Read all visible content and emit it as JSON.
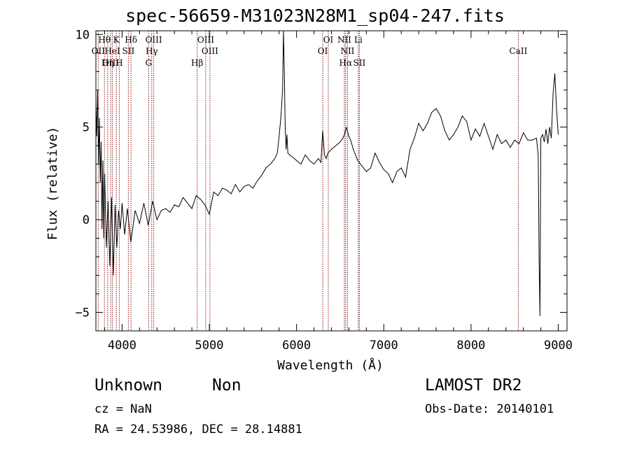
{
  "title": "spec-56659-M31023N28M1_sp04-247.fits",
  "info": {
    "class": "Unknown",
    "subclass": "Non",
    "survey": "LAMOST DR2",
    "cz": "cz = NaN",
    "obs_date": "Obs-Date: 20140101",
    "ra_dec": "RA =  24.53986, DEC =  28.14881"
  },
  "chart_data": {
    "type": "line",
    "title": "spec-56659-M31023N28M1_sp04-247.fits",
    "xlabel": "Wavelength (Å)",
    "ylabel": "Flux (relative)",
    "xlim": [
      3700,
      9100
    ],
    "ylim": [
      -6,
      10.2
    ],
    "x_ticks": [
      4000,
      5000,
      6000,
      7000,
      8000,
      9000
    ],
    "y_ticks": [
      -5,
      0,
      5,
      10
    ],
    "line_color": "#000000",
    "marker_color": "#8b1a1a",
    "grid": false,
    "series": [
      {
        "x": [
          3700,
          3710,
          3720,
          3730,
          3740,
          3750,
          3760,
          3770,
          3780,
          3790,
          3800,
          3820,
          3840,
          3860,
          3880,
          3900,
          3920,
          3940,
          3960,
          3980,
          4000,
          4030,
          4060,
          4100,
          4150,
          4200,
          4250,
          4300,
          4350,
          4400,
          4450,
          4500,
          4550,
          4600,
          4650,
          4700,
          4750,
          4800,
          4850,
          4900,
          4950,
          5000,
          5050,
          5100,
          5150,
          5200,
          5250,
          5300,
          5350,
          5400,
          5450,
          5500,
          5550,
          5600,
          5650,
          5700,
          5750,
          5780,
          5800,
          5820,
          5840,
          5850,
          5860,
          5870,
          5880,
          5890,
          5900,
          5920,
          5950,
          6000,
          6050,
          6100,
          6150,
          6200,
          6250,
          6280,
          6300,
          6320,
          6340,
          6360,
          6380,
          6400,
          6450,
          6500,
          6530,
          6550,
          6570,
          6600,
          6620,
          6650,
          6700,
          6750,
          6800,
          6850,
          6900,
          6950,
          7000,
          7050,
          7100,
          7150,
          7200,
          7250,
          7300,
          7350,
          7400,
          7450,
          7500,
          7550,
          7600,
          7650,
          7700,
          7750,
          7800,
          7850,
          7900,
          7950,
          8000,
          8050,
          8100,
          8150,
          8200,
          8250,
          8300,
          8350,
          8400,
          8450,
          8500,
          8550,
          8600,
          8650,
          8700,
          8750,
          8770,
          8780,
          8790,
          8800,
          8820,
          8840,
          8860,
          8880,
          8900,
          8920,
          8940,
          8960,
          8980,
          9000
        ],
        "y": [
          6.2,
          4.5,
          7.0,
          3.0,
          5.5,
          2.0,
          4.2,
          -0.5,
          3.2,
          -1.0,
          2.5,
          -1.5,
          1.0,
          -2.5,
          1.2,
          -3.0,
          0.8,
          -1.5,
          0.5,
          -0.5,
          0.9,
          -0.8,
          0.6,
          -1.2,
          0.5,
          -0.2,
          0.9,
          -0.3,
          1.0,
          0.0,
          0.5,
          0.6,
          0.4,
          0.8,
          0.7,
          1.2,
          0.9,
          0.6,
          1.3,
          1.1,
          0.8,
          0.3,
          1.5,
          1.3,
          1.7,
          1.6,
          1.4,
          1.9,
          1.5,
          1.8,
          1.9,
          1.7,
          2.1,
          2.4,
          2.8,
          3.0,
          3.3,
          3.6,
          4.5,
          5.5,
          7.0,
          10.2,
          8.0,
          5.0,
          3.8,
          4.6,
          3.6,
          3.5,
          3.4,
          3.2,
          3.0,
          3.5,
          3.2,
          3.0,
          3.3,
          3.1,
          4.8,
          3.5,
          3.3,
          3.6,
          3.7,
          3.8,
          4.0,
          4.2,
          4.4,
          4.6,
          5.0,
          4.5,
          4.3,
          3.8,
          3.2,
          2.9,
          2.6,
          2.8,
          3.6,
          3.1,
          2.7,
          2.5,
          2.0,
          2.6,
          2.8,
          2.3,
          3.8,
          4.4,
          5.2,
          4.8,
          5.2,
          5.8,
          6.0,
          5.6,
          4.8,
          4.3,
          4.6,
          5.0,
          5.6,
          5.3,
          4.3,
          4.9,
          4.5,
          5.2,
          4.5,
          3.8,
          4.6,
          4.1,
          4.3,
          3.9,
          4.3,
          4.1,
          4.7,
          4.3,
          4.3,
          4.4,
          3.5,
          -2.0,
          -5.2,
          4.4,
          4.6,
          4.2,
          4.9,
          4.1,
          5.0,
          4.4,
          6.8,
          7.9,
          6.0,
          4.6
        ]
      }
    ],
    "line_markers": [
      {
        "name": "Hθ",
        "wl": 3798
      },
      {
        "name": "OII",
        "wl": 3727
      },
      {
        "name": "OIII",
        "wl": 3869
      },
      {
        "name": "K",
        "wl": 3934
      },
      {
        "name": "HeI",
        "wl": 3889
      },
      {
        "name": "Hη",
        "wl": 3835
      },
      {
        "name": "H",
        "wl": 3968
      },
      {
        "name": "Hδ",
        "wl": 4102
      },
      {
        "name": "SII",
        "wl": 4072
      },
      {
        "name": "OIII",
        "wl": 4363
      },
      {
        "name": "Hγ",
        "wl": 4340
      },
      {
        "name": "G",
        "wl": 4304
      },
      {
        "name": "OIII",
        "wl": 4959
      },
      {
        "name": "OIII",
        "wl": 5007
      },
      {
        "name": "Hβ",
        "wl": 4861
      },
      {
        "name": "OI",
        "wl": 6364
      },
      {
        "name": "OI",
        "wl": 6300
      },
      {
        "name": "NII",
        "wl": 6548
      },
      {
        "name": "Li",
        "wl": 6708
      },
      {
        "name": "NII",
        "wl": 6584
      },
      {
        "name": "Hα",
        "wl": 6563
      },
      {
        "name": "SII",
        "wl": 6720
      },
      {
        "name": "CaII",
        "wl": 8542
      }
    ]
  }
}
